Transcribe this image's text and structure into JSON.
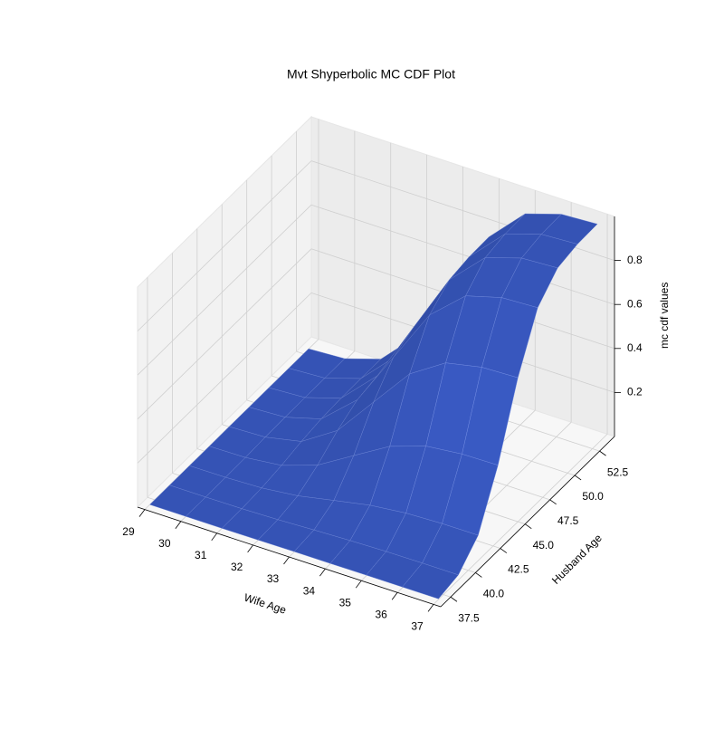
{
  "chart_data": {
    "type": "surface",
    "title": "Mvt Shyperbolic MC CDF Plot",
    "x_label": "Wife Age",
    "y_label": "Husband Age",
    "z_label": "mc cdf values",
    "color": "#3553b5",
    "x": [
      29,
      30,
      31,
      32,
      33,
      34,
      35,
      36,
      37
    ],
    "y": [
      37,
      39,
      41,
      43,
      45,
      47,
      49,
      51,
      53
    ],
    "z": [
      [
        0,
        0,
        0,
        0.001,
        0.002,
        0.002,
        0.003,
        0.003,
        0.003
      ],
      [
        0,
        0,
        0.001,
        0.005,
        0.012,
        0.018,
        0.022,
        0.023,
        0.023
      ],
      [
        0,
        0.001,
        0.007,
        0.025,
        0.058,
        0.09,
        0.108,
        0.114,
        0.115
      ],
      [
        0,
        0.003,
        0.021,
        0.076,
        0.173,
        0.269,
        0.324,
        0.342,
        0.345
      ],
      [
        0.001,
        0.007,
        0.041,
        0.145,
        0.328,
        0.51,
        0.614,
        0.648,
        0.654
      ],
      [
        0.001,
        0.009,
        0.055,
        0.196,
        0.443,
        0.689,
        0.83,
        0.876,
        0.884
      ],
      [
        0.001,
        0.01,
        0.061,
        0.216,
        0.489,
        0.761,
        0.916,
        0.967,
        0.976
      ],
      [
        0.001,
        0.01,
        0.062,
        0.22,
        0.499,
        0.777,
        0.935,
        0.987,
        0.996
      ],
      [
        0.001,
        0.01,
        0.062,
        0.221,
        0.5,
        0.779,
        0.938,
        0.99,
        0.999
      ]
    ],
    "xlim": [
      28.8,
      37.2
    ],
    "ylim": [
      36.5,
      54
    ],
    "zlim": [
      0,
      1
    ],
    "xticks": [
      29,
      30,
      31,
      32,
      33,
      34,
      35,
      36,
      37
    ],
    "yticks": [
      37.5,
      {
        "value": 40,
        "label": "40.0"
      },
      42.5,
      {
        "value": 45,
        "label": "45.0"
      },
      47.5,
      {
        "value": 50,
        "label": "50.0"
      },
      52.5
    ],
    "zticks": [
      0.2,
      0.4,
      0.6,
      0.8
    ],
    "grid": true
  }
}
